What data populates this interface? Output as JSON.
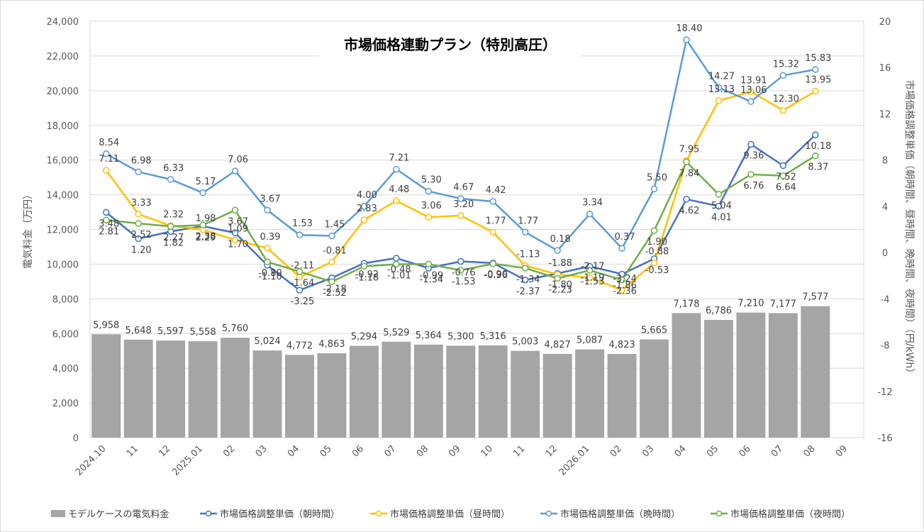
{
  "colors": {
    "bar": "#a5a5a5",
    "morning": "#4472c4",
    "day": "#ffc000",
    "evening": "#5b9bd5",
    "night": "#70ad47",
    "grid": "#d9d9d9",
    "axis_text": "#595959",
    "label_text": "#404040"
  },
  "chart_data": {
    "type": "bar",
    "title": "市場価格連動プラン（特別高圧）",
    "categories": [
      "2024.10",
      "11",
      "12",
      "2025.01",
      "02",
      "03",
      "04",
      "05",
      "06",
      "07",
      "08",
      "09",
      "10",
      "11",
      "12",
      "2026.01",
      "02",
      "03",
      "04",
      "05",
      "06",
      "07",
      "08",
      "09"
    ],
    "ylabel": "電気料金（万円）",
    "y2label": "市場価格調整単価（朝時間、昼時間、晩時間、夜時間）（円/kWh）",
    "ylim": [
      0,
      24000
    ],
    "y2lim": [
      -16,
      20
    ],
    "yticks": [
      0,
      2000,
      4000,
      6000,
      8000,
      10000,
      12000,
      14000,
      16000,
      18000,
      20000,
      22000,
      24000
    ],
    "ytick_labels": [
      "0",
      "2,000",
      "4,000",
      "6,000",
      "8,000",
      "10,000",
      "12,000",
      "14,000",
      "16,000",
      "18,000",
      "20,000",
      "22,000",
      "24,000"
    ],
    "y2ticks": [
      -16,
      -12,
      -8,
      -4,
      0,
      4,
      8,
      12,
      16,
      20
    ],
    "y2tick_labels": [
      "-16",
      "-12",
      "-8",
      "-4",
      "0",
      "4",
      "8",
      "12",
      "16",
      "20"
    ],
    "grid": true,
    "legend_position": "bottom",
    "bar_series": {
      "name": "モデルケースの電気料金",
      "values": [
        5958,
        5648,
        5597,
        5558,
        5760,
        5024,
        4772,
        4863,
        5294,
        5529,
        5364,
        5300,
        5316,
        5003,
        4827,
        5087,
        4823,
        5665,
        7178,
        6786,
        7210,
        7177,
        7577,
        null
      ],
      "labels": [
        "5,958",
        "5,648",
        "5,597",
        "5,558",
        "5,760",
        "5,024",
        "4,772",
        "4,863",
        "5,294",
        "5,529",
        "5,364",
        "5,300",
        "5,316",
        "5,003",
        "4,827",
        "5,087",
        "4,823",
        "5,665",
        "7,178",
        "6,786",
        "7,210",
        "7,177",
        "7,577",
        ""
      ]
    },
    "series": [
      {
        "name": "市場価格調整単価（朝時間）",
        "key": "morning",
        "values": [
          3.48,
          1.2,
          1.82,
          2.29,
          1.7,
          -1.1,
          -3.25,
          -2.18,
          -0.92,
          -0.48,
          -1.34,
          -0.76,
          -0.9,
          -2.37,
          -1.8,
          -1.19,
          -1.86,
          -0.53,
          4.62,
          4.01,
          9.36,
          7.52,
          10.18,
          null
        ]
      },
      {
        "name": "市場価格調整単価（昼時間）",
        "key": "day",
        "values": [
          7.11,
          3.33,
          2.32,
          1.98,
          1.09,
          0.39,
          -2.11,
          -0.81,
          2.83,
          4.48,
          3.06,
          3.2,
          1.77,
          -1.13,
          -1.88,
          -2.17,
          -3.24,
          -0.88,
          7.95,
          13.13,
          13.91,
          12.3,
          13.95,
          null
        ]
      },
      {
        "name": "市場価格調整単価（晩時間）",
        "key": "evening",
        "values": [
          8.54,
          6.98,
          6.33,
          5.17,
          7.06,
          3.67,
          1.53,
          1.45,
          4.0,
          7.21,
          5.3,
          4.67,
          4.42,
          1.77,
          0.18,
          3.34,
          0.37,
          5.5,
          18.4,
          14.27,
          13.06,
          15.32,
          15.83,
          null
        ]
      },
      {
        "name": "市場価格調整単価（夜時間）",
        "key": "night",
        "values": [
          2.81,
          2.52,
          2.27,
          2.38,
          3.67,
          -0.8,
          -1.64,
          -2.52,
          -1.18,
          -1.01,
          -0.99,
          -1.53,
          -0.96,
          -1.34,
          -2.23,
          -1.53,
          -2.36,
          1.9,
          7.84,
          5.04,
          6.76,
          6.64,
          8.37,
          null
        ]
      }
    ]
  }
}
